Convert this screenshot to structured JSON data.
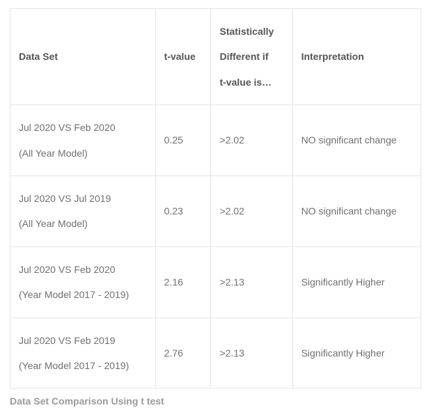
{
  "table": {
    "columns": [
      {
        "label": "Data Set"
      },
      {
        "label": "t-value"
      },
      {
        "label_line1": "Statistically",
        "label_line2": "Different if",
        "label_line3": "t-value is…"
      },
      {
        "label": "Interpretation"
      }
    ],
    "rows": [
      {
        "dataset_line1": "Jul 2020 VS Feb 2020",
        "dataset_line2": "(All Year Model)",
        "t_value": "0.25",
        "threshold": ">2.02",
        "interpretation": "NO significant change"
      },
      {
        "dataset_line1": "Jul 2020 VS Jul 2019",
        "dataset_line2": "(All Year Model)",
        "t_value": "0.23",
        "threshold": ">2.02",
        "interpretation": "NO significant change"
      },
      {
        "dataset_line1": "Jul 2020 VS Feb 2020",
        "dataset_line2": "(Year Model 2017 - 2019)",
        "t_value": "2.16",
        "threshold": ">2.13",
        "interpretation": "Significantly Higher"
      },
      {
        "dataset_line1": "Jul 2020 VS Feb 2019",
        "dataset_line2": "(Year Model 2017 - 2019)",
        "t_value": "2.76",
        "threshold": ">2.13",
        "interpretation": "Significantly Higher"
      }
    ],
    "caption": "Data Set Comparison Using t test"
  },
  "styling": {
    "border_color": "#e5e5e5",
    "text_color": "#6f6f6f",
    "header_text_color": "#555555",
    "caption_color": "#9a9a9a",
    "background_color": "#ffffff",
    "font_size_pt": 10.5,
    "line_height": 2.6
  }
}
